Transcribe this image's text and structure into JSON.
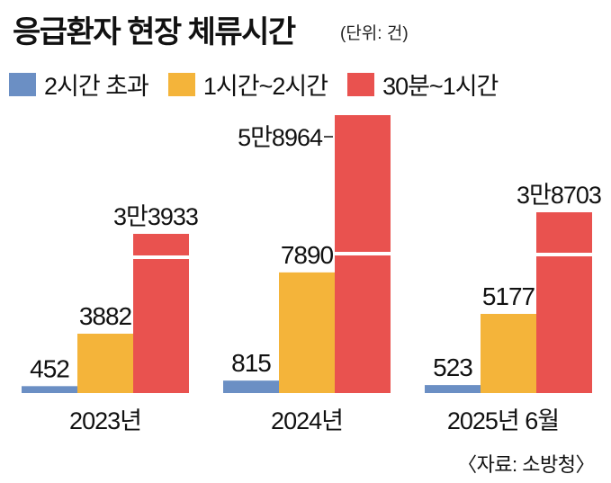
{
  "header": {
    "title": "응급환자 현장 체류시간",
    "unit": "(단위: 건)"
  },
  "colors": {
    "blue": "#6b8fc4",
    "yellow": "#f4b43a",
    "red": "#e9524f"
  },
  "source": "〈자료: 소방청〉",
  "chart_data": {
    "type": "bar",
    "categories": [
      "2023년",
      "2024년",
      "2025년 6월"
    ],
    "series": [
      {
        "name": "2시간 초과",
        "color": "#6b8fc4",
        "values": [
          452,
          815,
          523
        ],
        "labels": [
          "452",
          "815",
          "523"
        ]
      },
      {
        "name": "1시간~2시간",
        "color": "#f4b43a",
        "values": [
          3882,
          7890,
          5177
        ],
        "labels": [
          "3882",
          "7890",
          "5177"
        ]
      },
      {
        "name": "30분~1시간",
        "color": "#e9524f",
        "values": [
          33933,
          58964,
          38703
        ],
        "labels": [
          "3만3933",
          "5만8964",
          "3만8703"
        ]
      }
    ],
    "title": "응급환자 현장 체류시간",
    "unit": "건",
    "axis_break": true
  }
}
